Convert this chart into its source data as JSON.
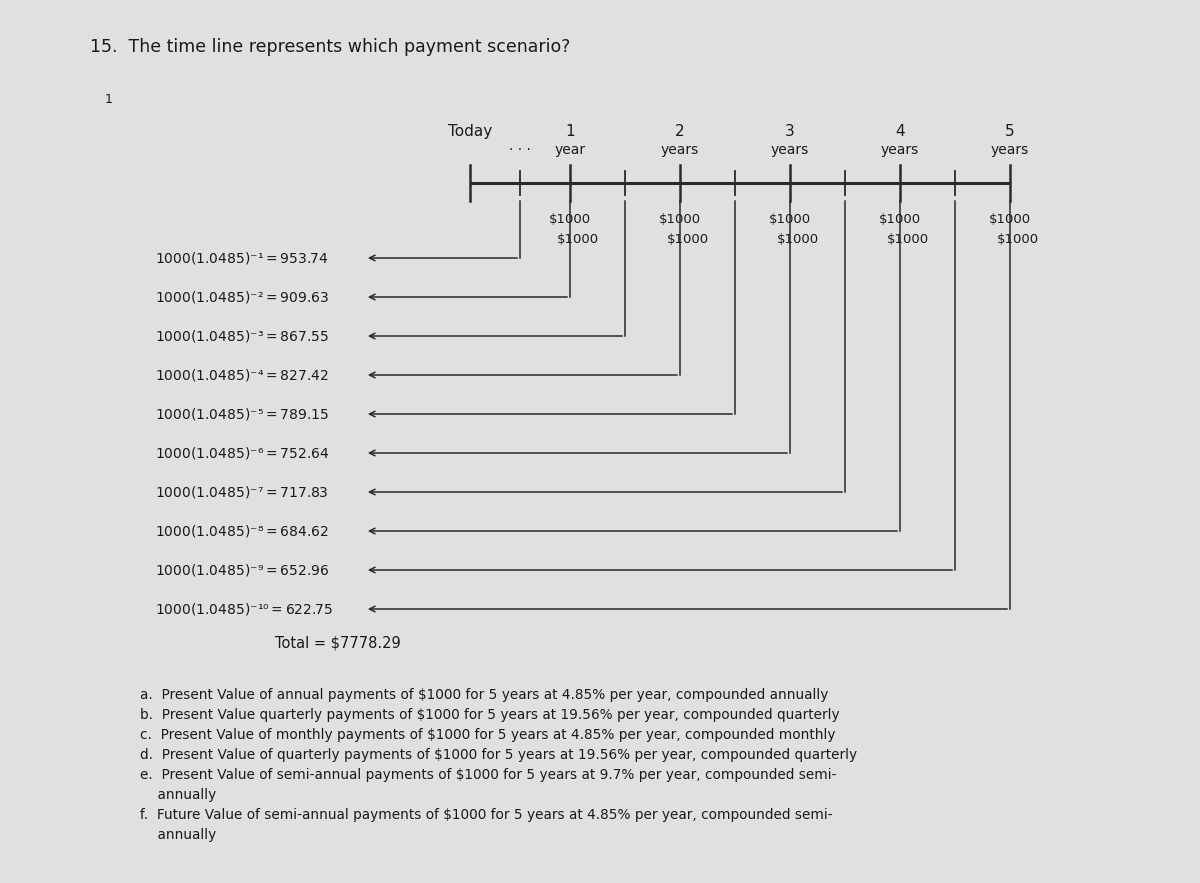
{
  "title": "15.  The time line represents which payment scenario?",
  "title_fontsize": 12.5,
  "background_color": "#e0e0e0",
  "timeline_labels_top": [
    "Today",
    "1",
    "2",
    "3",
    "4",
    "5"
  ],
  "timeline_sublabels": [
    "",
    "year",
    "years",
    "years",
    "years",
    "years"
  ],
  "pv_labels": [
    "$1000(1.0485)⁻¹= $953.74",
    "$1000(1.0485)⁻²= $909.63",
    "$1000(1.0485)⁻³= $867.55",
    "$1000(1.0485)⁻⁴= $827.42",
    "$1000(1.0485)⁻⁵= $789.15",
    "$1000(1.0485)⁻⁶= $752.64",
    "$1000(1.0485)⁻⁷= $717.83",
    "$1000(1.0485)⁻⁸= $684.62",
    "$1000(1.0485)⁻⁹= $652.96",
    "$1000(1.0485)⁻¹⁰= $622.75"
  ],
  "total_label": "Total = $7778.29",
  "answer_options": [
    "a.  Present Value of annual payments of $1000 for 5 years at 4.85% per year, compounded annually",
    "b.  Present Value quarterly payments of $1000 for 5 years at 19.56% per year, compounded quarterly",
    "c.  Present Value of monthly payments of $1000 for 5 years at 4.85% per year, compounded monthly",
    "d.  Present Value of quarterly payments of $1000 for 5 years at 19.56% per year, compounded quarterly",
    "e.  Present Value of semi-annual payments of $1000 for 5 years at 9.7% per year, compounded semi-",
    "    annually",
    "f.  Future Value of semi-annual payments of $1000 for 5 years at 4.85% per year, compounded semi-",
    "    annually"
  ],
  "text_color": "#1a1a1a",
  "line_color": "#2a2a2a",
  "arrow_color": "#2a2a2a"
}
